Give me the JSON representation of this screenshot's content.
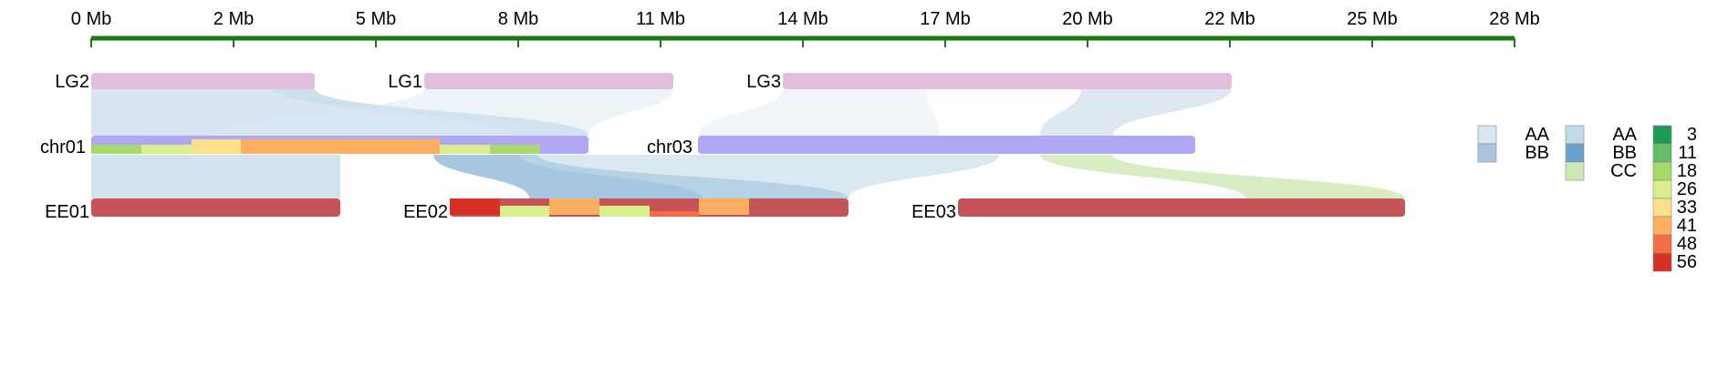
{
  "axis": {
    "color": "#1a7a12",
    "ticks": [
      "0 Mb",
      "2 Mb",
      "5 Mb",
      "8 Mb",
      "11 Mb",
      "14 Mb",
      "17 Mb",
      "20 Mb",
      "22 Mb",
      "25 Mb",
      "28 Mb"
    ]
  },
  "tracks": {
    "top": [
      {
        "label": "LG2",
        "color": "#e2bddc"
      },
      {
        "label": "LG1",
        "color": "#e2bddc"
      },
      {
        "label": "LG3",
        "color": "#e2bddc"
      }
    ],
    "middle": [
      {
        "label": "chr01",
        "color": "#b0a8f4"
      },
      {
        "label": "chr03",
        "color": "#b0a8f4"
      }
    ],
    "bottom": [
      {
        "label": "EE01",
        "color": "#c65456"
      },
      {
        "label": "EE02",
        "color": "#c65456"
      },
      {
        "label": "EE03",
        "color": "#c65456"
      }
    ]
  },
  "legends": [
    {
      "items": [
        {
          "label": "AA",
          "color": "#d7e6f0"
        },
        {
          "label": "BB",
          "color": "#a9c6de"
        }
      ]
    },
    {
      "items": [
        {
          "label": "AA",
          "color": "#c2dbe8"
        },
        {
          "label": "BB",
          "color": "#6aa2cf"
        },
        {
          "label": "CC",
          "color": "#cfe9b4"
        }
      ]
    },
    {
      "items": [
        {
          "label": "3",
          "color": "#1e9a56"
        },
        {
          "label": "11",
          "color": "#66bd63"
        },
        {
          "label": "18",
          "color": "#a6d96a"
        },
        {
          "label": "26",
          "color": "#d9ef8b"
        },
        {
          "label": "33",
          "color": "#fee08b"
        },
        {
          "label": "41",
          "color": "#fdae61"
        },
        {
          "label": "48",
          "color": "#f46d43"
        },
        {
          "label": "56",
          "color": "#d73027"
        }
      ]
    }
  ]
}
